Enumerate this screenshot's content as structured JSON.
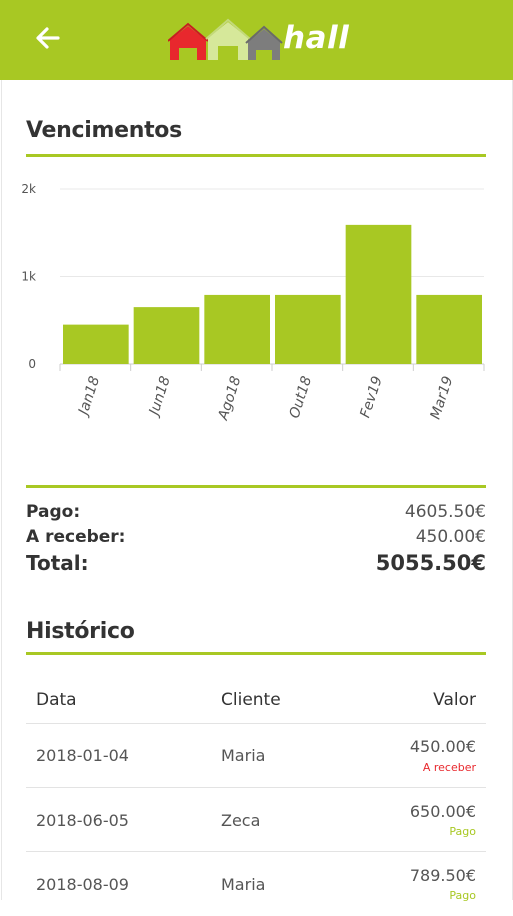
{
  "app": {
    "logo_text": "hall"
  },
  "colors": {
    "accent": "#a8c823",
    "danger": "#e8282d",
    "text": "#333333"
  },
  "sections": {
    "due_title": "Vencimentos",
    "history_title": "Histórico"
  },
  "chart_data": {
    "type": "bar",
    "categories": [
      "Jan18",
      "Jun18",
      "Ago18",
      "Out18",
      "Fev19",
      "Mar19"
    ],
    "values": [
      450,
      650,
      789.5,
      789.5,
      1590,
      789.5
    ],
    "yticks": [
      "0",
      "1k",
      "2k"
    ],
    "ylim": [
      0,
      2000
    ],
    "grid": true,
    "bar_color": "#a8c823"
  },
  "summary": [
    {
      "label": "Pago:",
      "value": "4605.50€"
    },
    {
      "label": "A receber:",
      "value": "450.00€"
    },
    {
      "label": "Total:",
      "value": "5055.50€"
    }
  ],
  "history": {
    "headers": {
      "date": "Data",
      "client": "Cliente",
      "value": "Valor"
    },
    "rows": [
      {
        "date": "2018-01-04",
        "client": "Maria",
        "value": "450.00€",
        "status": "A receber",
        "status_color": "#e8282d"
      },
      {
        "date": "2018-06-05",
        "client": "Zeca",
        "value": "650.00€",
        "status": "Pago",
        "status_color": "#a8c823"
      },
      {
        "date": "2018-08-09",
        "client": "Maria",
        "value": "789.50€",
        "status": "Pago",
        "status_color": "#a8c823"
      }
    ]
  }
}
